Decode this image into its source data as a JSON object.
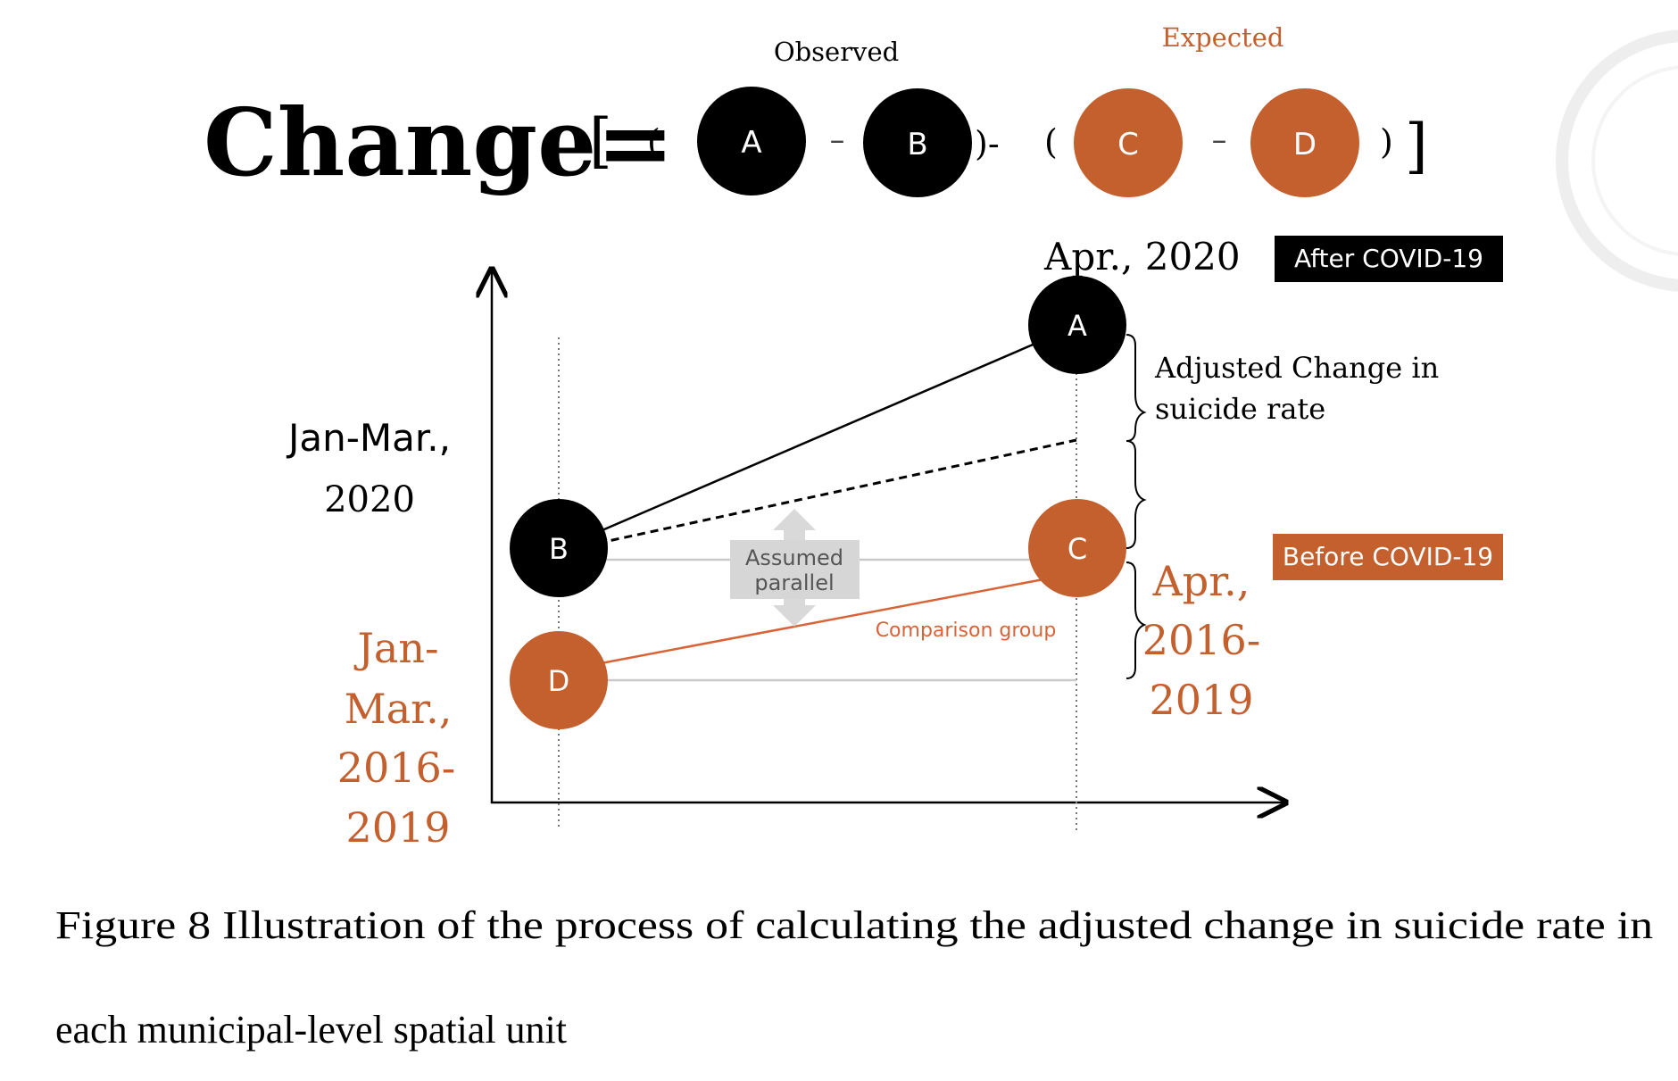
{
  "formula": {
    "title": "Change=",
    "open_bracket": "[",
    "close_bracket": "]",
    "open_paren_1": "(",
    "close_paren_1": ")-",
    "open_paren_2": "(",
    "close_paren_2": ")",
    "minus": "–",
    "observed_label": "Observed",
    "expected_label": "Expected",
    "circles": [
      "A",
      "B",
      "C",
      "D"
    ]
  },
  "diagram": {
    "point_labels": {
      "a": "A",
      "b": "B",
      "c": "C",
      "d": "D"
    },
    "apr_2020_label": "Apr., 2020",
    "after_covid_label": "After COVID-19",
    "before_covid_label": "Before COVID-19",
    "adjusted_change_line1": "Adjusted Change in",
    "adjusted_change_line2": "suicide rate",
    "jan_mar_2020_line1": "Jan-Mar.,",
    "jan_mar_2020_line2": "2020",
    "jan_mar_1619_lines": [
      "Jan-",
      "Mar.,",
      "2016-",
      "2019"
    ],
    "apr_1619_lines": [
      "Apr.,",
      "2016-",
      "2019"
    ],
    "assumed_parallel_line1": "Assumed",
    "assumed_parallel_line2": "parallel",
    "comparison_group_label": "Comparison group"
  },
  "caption": {
    "line1": "Figure 8 Illustration of the process of calculating the adjusted change in suicide rate in",
    "line2": "each municipal-level spatial unit"
  },
  "colors": {
    "black": "#000000",
    "orange": "#c45f2e",
    "gray": "#c9c9c9",
    "label_gray": "#555555"
  }
}
